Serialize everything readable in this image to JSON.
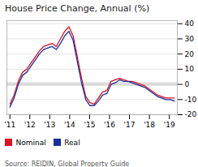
{
  "chart_data": {
    "type": "line",
    "title": "House Price Change, Annual (%)",
    "source": "Source: REIDIN, Global Property Guide",
    "x": [
      2011,
      2011.211538,
      2011.423077,
      2011.634615,
      2011.846154,
      2012.057692,
      2012.269231,
      2012.480769,
      2012.692308,
      2012.903846,
      2013.115385,
      2013.326923,
      2013.538462,
      2013.75,
      2013.961538,
      2014.173077,
      2014.384615,
      2014.596154,
      2014.807692,
      2015.019231,
      2015.230769,
      2015.442308,
      2015.653846,
      2015.865385,
      2016.076923,
      2016.288462,
      2016.5,
      2016.711538,
      2016.923077,
      2017.134615,
      2017.346154,
      2017.557692,
      2017.769231,
      2017.980769,
      2018.192308,
      2018.403846,
      2018.615385,
      2018.826923,
      2019.038462,
      2019.25
    ],
    "series": [
      {
        "name": "Nominal",
        "color": "#dd1122",
        "values": [
          -13,
          -7,
          2,
          8,
          10,
          14,
          18,
          22,
          25,
          26,
          27,
          25,
          30,
          35,
          38,
          32,
          18,
          4,
          -8,
          -12,
          -13,
          -9,
          -5,
          -4,
          2,
          3,
          4,
          3,
          2,
          2,
          1,
          0,
          -1,
          -3,
          -5,
          -7,
          -8,
          -9,
          -9,
          -9
        ]
      },
      {
        "name": "Real",
        "color": "#1a2fa0",
        "values": [
          -15,
          -9,
          0,
          6,
          8,
          12,
          16,
          20,
          23,
          24,
          25,
          23,
          27,
          32,
          35,
          29,
          15,
          1,
          -10,
          -14,
          -14,
          -11,
          -7,
          -6,
          0,
          1,
          3,
          2,
          2,
          1,
          0,
          -1,
          -2,
          -4,
          -6,
          -8,
          -9,
          -10,
          -10,
          -11
        ]
      }
    ],
    "xlim": [
      2010.85,
      2019.4
    ],
    "xticks": [
      {
        "value": 2011,
        "label": "'11"
      },
      {
        "value": 2012,
        "label": "'12"
      },
      {
        "value": 2013,
        "label": "'13"
      },
      {
        "value": 2014,
        "label": "'14"
      },
      {
        "value": 2015,
        "label": "'15"
      },
      {
        "value": 2016,
        "label": "'16"
      },
      {
        "value": 2017,
        "label": "'17"
      },
      {
        "value": 2018,
        "label": "'18"
      },
      {
        "value": 2019,
        "label": "'19"
      }
    ],
    "ylim": [
      -20,
      42
    ],
    "yticks": [
      -20,
      -10,
      0,
      10,
      20,
      30,
      40
    ],
    "band": {
      "values": [
        -1.2,
        1.2
      ],
      "color": "#c8c8c8"
    },
    "grid": true,
    "legend": "lower left"
  }
}
